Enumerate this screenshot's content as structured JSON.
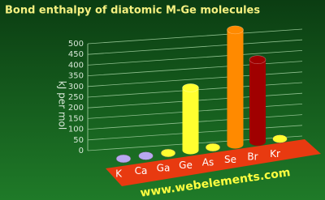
{
  "chart_data": {
    "type": "bar3d",
    "title": "Bond enthalpy of diatomic M-Ge molecules",
    "y_label": "kJ per mol",
    "watermark": "www.webelements.com",
    "categories": [
      "K",
      "Ca",
      "Ga",
      "Ge",
      "As",
      "Se",
      "Br",
      "Kr"
    ],
    "values": [
      null,
      null,
      null,
      264,
      null,
      485,
      347,
      null
    ],
    "colors": [
      "#b8a8f0",
      "#b8a8f0",
      "#ffff30",
      "#ffff30",
      "#ffff30",
      "#ff8a00",
      "#a00000",
      "#ffff30"
    ],
    "ylim": [
      0,
      500
    ],
    "yticks": [
      0,
      50,
      100,
      150,
      200,
      250,
      300,
      350,
      400,
      450,
      500
    ],
    "grid": true
  }
}
